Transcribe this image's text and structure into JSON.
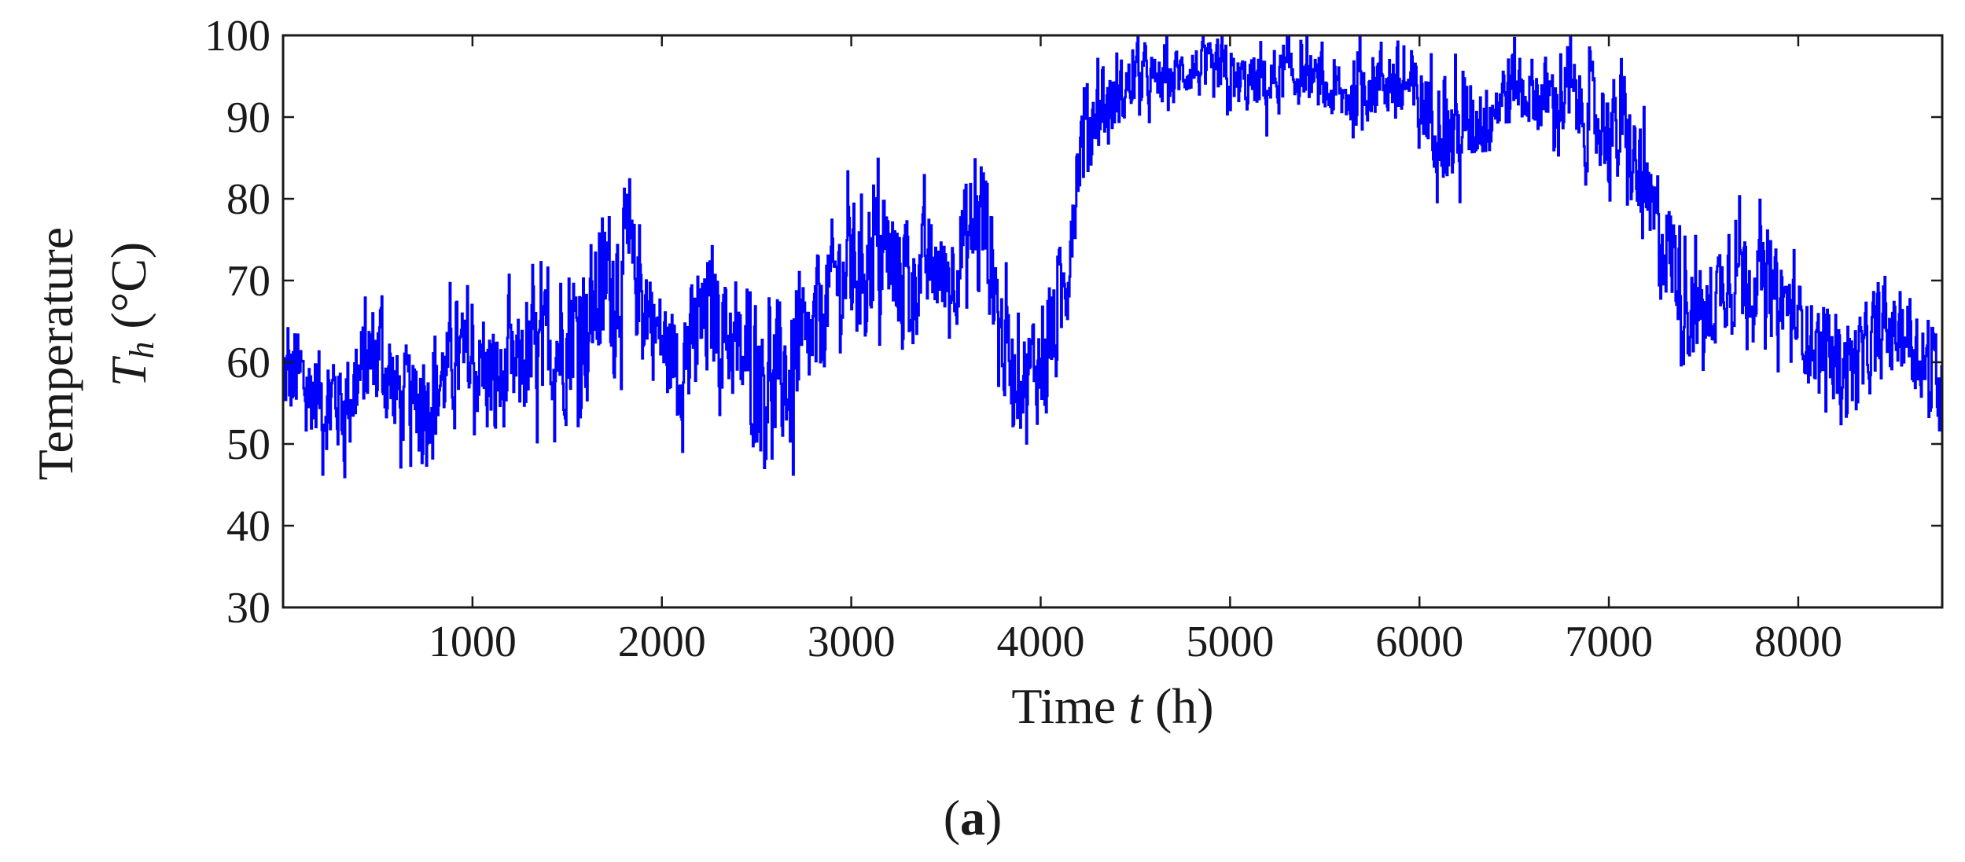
{
  "figure": {
    "panel_label_open": "(",
    "panel_label_letter": "a",
    "panel_label_close": ")"
  },
  "chart_data": {
    "type": "line",
    "xlabel": {
      "word": "Time",
      "var": "t",
      "unit": "(h)"
    },
    "ylabel": {
      "line1": "Temperature",
      "var": "T",
      "sub": "h",
      "unit": "(°C)"
    },
    "xlim": [
      0,
      8760
    ],
    "ylim": [
      30,
      100
    ],
    "xticks": [
      1000,
      2000,
      3000,
      4000,
      5000,
      6000,
      7000,
      8000
    ],
    "yticks": [
      30,
      40,
      50,
      60,
      70,
      80,
      90,
      100
    ],
    "grid": false,
    "line_color": "#0000ff",
    "series": [
      {
        "envelope_step_h": 100,
        "x_start": 0,
        "x_end": 8760,
        "center": [
          58,
          57,
          56,
          55,
          58,
          62,
          56,
          55,
          57,
          60,
          60,
          57,
          58,
          60,
          62,
          62,
          65,
          70,
          72,
          68,
          62,
          60,
          64,
          66,
          60,
          60,
          58,
          58,
          63,
          70,
          72,
          74,
          72,
          70,
          72,
          70,
          75,
          78,
          62,
          58,
          60,
          65,
          86,
          92,
          92,
          95,
          94,
          95,
          96,
          95,
          94,
          94,
          94,
          95,
          95,
          93,
          92,
          94,
          95,
          94,
          92,
          90,
          88,
          90,
          92,
          94,
          93,
          92,
          92,
          90,
          89,
          86,
          78,
          75,
          68,
          65,
          70,
          72,
          70,
          68,
          65,
          62,
          60,
          60,
          62,
          64,
          63,
          58,
          57,
          56,
          58,
          58,
          56,
          57,
          58,
          58,
          58,
          56,
          57,
          57,
          56
        ],
        "amplitude": [
          10,
          10,
          11,
          10,
          11,
          11,
          10,
          10,
          10,
          10,
          11,
          11,
          11,
          12,
          12,
          13,
          14,
          15,
          14,
          11,
          11,
          11,
          12,
          12,
          12,
          13,
          14,
          14,
          12,
          12,
          12,
          14,
          14,
          12,
          10,
          10,
          12,
          16,
          11,
          10,
          11,
          12,
          10,
          8,
          7,
          6,
          5,
          5,
          5,
          6,
          6,
          6,
          7,
          6,
          5,
          5,
          6,
          7,
          8,
          8,
          9,
          10,
          10,
          9,
          8,
          7,
          7,
          8,
          9,
          10,
          10,
          10,
          12,
          12,
          11,
          10,
          9,
          10,
          9,
          9,
          8,
          8,
          8,
          8,
          8,
          8,
          8,
          9,
          10,
          10,
          10,
          9,
          9,
          10,
          10,
          10,
          10,
          10,
          10,
          10,
          10
        ]
      }
    ]
  }
}
